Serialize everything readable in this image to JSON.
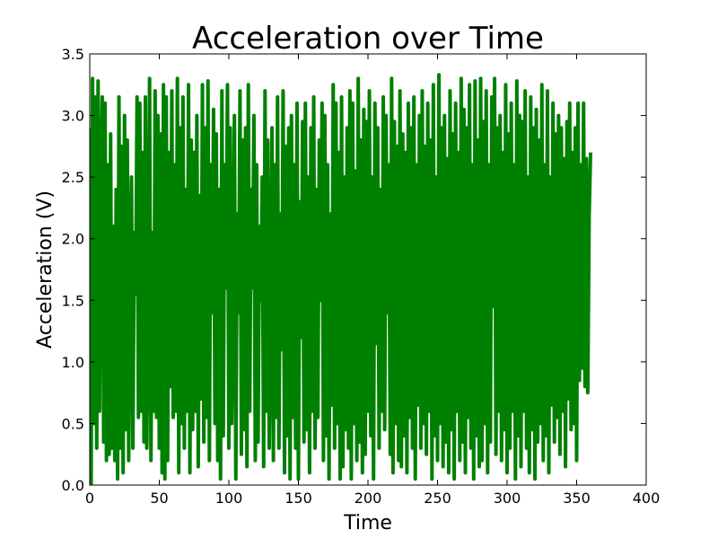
{
  "chart_data": {
    "type": "line",
    "title": "Acceleration over Time",
    "xlabel": "Time",
    "ylabel": "Acceleration (V)",
    "xlim": [
      0,
      400
    ],
    "ylim": [
      0,
      3.5
    ],
    "xticks": [
      0,
      50,
      100,
      150,
      200,
      250,
      300,
      350,
      400
    ],
    "yticks": [
      0.0,
      0.5,
      1.0,
      1.5,
      2.0,
      2.5,
      3.0,
      3.5
    ],
    "xtick_labels": [
      "0",
      "50",
      "100",
      "150",
      "200",
      "250",
      "300",
      "350",
      "400"
    ],
    "ytick_labels": [
      "0.0",
      "0.5",
      "1.0",
      "1.5",
      "2.0",
      "2.5",
      "3.0",
      "3.5"
    ],
    "grid": false,
    "legend": false,
    "series": [
      {
        "color": "#008000",
        "x_start": 0,
        "x_step": 1,
        "values": [
          2.9,
          0.0,
          3.3,
          0.5,
          3.15,
          0.3,
          3.28,
          0.6,
          2.5,
          3.15,
          0.35,
          3.1,
          0.2,
          2.6,
          0.25,
          2.85,
          0.3,
          2.1,
          0.2,
          2.4,
          0.05,
          3.15,
          0.3,
          2.75,
          0.1,
          3.0,
          0.45,
          2.8,
          0.2,
          1.8,
          2.5,
          0.3,
          2.05,
          1.55,
          3.15,
          0.55,
          3.1,
          0.6,
          2.7,
          0.35,
          3.15,
          0.3,
          1.5,
          3.3,
          0.2,
          2.05,
          0.6,
          3.2,
          0.55,
          3.0,
          0.3,
          2.85,
          0.1,
          3.25,
          0.05,
          3.15,
          0.2,
          2.7,
          0.8,
          3.2,
          0.55,
          2.6,
          0.6,
          3.3,
          0.1,
          2.9,
          0.5,
          3.15,
          0.3,
          2.4,
          0.6,
          3.25,
          0.1,
          2.8,
          0.45,
          2.7,
          0.6,
          3.0,
          0.15,
          2.35,
          0.7,
          3.25,
          0.35,
          2.9,
          0.55,
          3.28,
          0.2,
          2.6,
          1.4,
          3.05,
          0.5,
          2.85,
          0.2,
          2.4,
          0.05,
          3.2,
          0.4,
          2.6,
          1.6,
          3.25,
          0.3,
          2.9,
          0.5,
          1.45,
          3.0,
          0.05,
          2.2,
          1.4,
          3.2,
          0.25,
          2.8,
          0.45,
          2.9,
          0.15,
          3.25,
          0.6,
          2.4,
          1.6,
          3.0,
          0.2,
          2.6,
          0.35,
          2.1,
          1.5,
          2.5,
          0.15,
          3.2,
          0.6,
          2.8,
          0.3,
          1.3,
          2.9,
          0.2,
          2.6,
          0.55,
          3.15,
          0.3,
          2.2,
          1.1,
          3.2,
          0.1,
          2.75,
          0.4,
          2.9,
          0.05,
          3.0,
          0.55,
          2.6,
          0.3,
          3.1,
          0.05,
          2.3,
          1.2,
          2.95,
          0.35,
          3.1,
          0.45,
          2.5,
          0.1,
          2.9,
          0.6,
          3.15,
          0.3,
          2.4,
          0.55,
          2.8,
          1.5,
          3.1,
          0.2,
          3.0,
          0.4,
          2.6,
          0.05,
          2.2,
          0.65,
          3.25,
          0.3,
          3.1,
          0.5,
          2.7,
          0.05,
          3.15,
          0.15,
          2.5,
          0.45,
          2.9,
          0.3,
          3.2,
          0.05,
          3.1,
          0.5,
          2.55,
          0.2,
          3.3,
          0.35,
          2.8,
          0.1,
          3.05,
          0.25,
          2.95,
          0.6,
          3.2,
          0.4,
          2.5,
          0.05,
          3.1,
          1.15,
          2.9,
          0.3,
          2.4,
          0.6,
          3.15,
          0.45,
          3.0,
          1.4,
          2.6,
          0.25,
          3.3,
          0.1,
          2.95,
          0.5,
          2.75,
          0.2,
          3.2,
          0.15,
          2.85,
          0.4,
          2.7,
          0.1,
          3.1,
          0.55,
          2.9,
          0.3,
          3.15,
          0.05,
          2.6,
          0.65,
          3.0,
          0.3,
          3.2,
          0.5,
          2.75,
          0.25,
          3.1,
          0.6,
          2.8,
          0.05,
          3.25,
          0.4,
          2.5,
          0.2,
          3.33,
          0.5,
          2.9,
          0.15,
          3.0,
          0.35,
          2.65,
          0.1,
          3.2,
          0.45,
          2.85,
          0.05,
          3.1,
          0.6,
          2.7,
          0.2,
          3.3,
          0.35,
          3.05,
          0.1,
          2.9,
          0.55,
          3.25,
          0.3,
          2.6,
          0.05,
          3.28,
          0.4,
          2.8,
          0.15,
          3.3,
          0.2,
          2.95,
          0.5,
          3.2,
          0.1,
          2.6,
          0.35,
          3.15,
          1.45,
          3.3,
          0.25,
          2.9,
          0.6,
          3.0,
          0.2,
          2.7,
          0.45,
          3.25,
          0.1,
          2.85,
          0.3,
          3.1,
          0.6,
          2.6,
          0.05,
          3.28,
          0.4,
          3.0,
          0.15,
          2.95,
          0.6,
          3.2,
          0.3,
          2.5,
          0.1,
          3.15,
          0.45,
          2.9,
          0.05,
          3.05,
          0.35,
          2.8,
          0.5,
          3.25,
          0.2,
          2.6,
          0.4,
          3.2,
          0.1,
          2.5,
          0.65,
          3.1,
          0.35,
          2.85,
          0.55,
          3.0,
          0.25,
          2.9,
          0.6,
          2.65,
          0.15,
          2.95,
          0.7,
          3.1,
          0.45,
          2.7,
          0.5,
          2.9,
          0.2,
          3.1,
          0.85,
          2.6,
          0.95,
          3.1,
          0.8,
          2.65,
          0.75,
          2.2,
          2.7
        ]
      }
    ]
  }
}
